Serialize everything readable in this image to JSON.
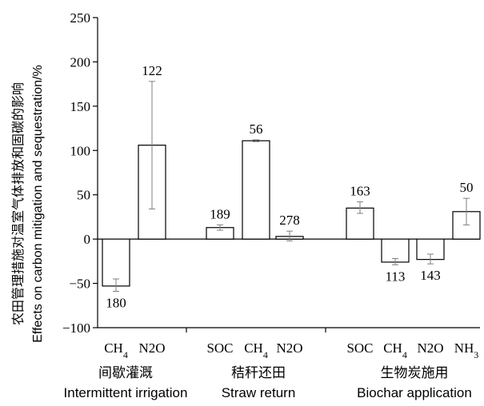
{
  "chart_data": {
    "type": "bar",
    "ylabel_cn": "农田管理措施对温室气体排放和固碳的影响",
    "ylabel_en": "Effects on carbon mitigation and sequestration/%",
    "ylim": [
      -100,
      250
    ],
    "yticks": [
      "250",
      "200",
      "150",
      "100",
      "50",
      "0",
      "−50",
      "−100"
    ],
    "ytick_values": [
      250,
      200,
      150,
      100,
      50,
      0,
      -50,
      -100
    ],
    "grid": false,
    "groups": [
      {
        "name_cn": "间歇灌溉",
        "name_en": "Intermittent irrigation",
        "bars": [
          {
            "category": "CH4",
            "value": -53,
            "err_low": -59,
            "err_high": -45,
            "n": "180"
          },
          {
            "category": "N2O",
            "value": 106,
            "err_low": 34,
            "err_high": 178,
            "n": "122"
          }
        ]
      },
      {
        "name_cn": "秸秆还田",
        "name_en": "Straw return",
        "bars": [
          {
            "category": "SOC",
            "value": 13,
            "err_low": 10,
            "err_high": 16,
            "n": "189"
          },
          {
            "category": "CH4",
            "value": 111,
            "err_low": 110,
            "err_high": 112,
            "n": "56"
          },
          {
            "category": "N2O",
            "value": 3,
            "err_low": -2,
            "err_high": 9,
            "n": "278"
          }
        ]
      },
      {
        "name_cn": "生物炭施用",
        "name_en": "Biochar application",
        "bars": [
          {
            "category": "SOC",
            "value": 35,
            "err_low": 29,
            "err_high": 42,
            "n": "163"
          },
          {
            "category": "CH4",
            "value": -26,
            "err_low": -29,
            "err_high": -22,
            "n": "113"
          },
          {
            "category": "N2O",
            "value": -23,
            "err_low": -28,
            "err_high": -17,
            "n": "143"
          },
          {
            "category": "NH3",
            "value": 31,
            "err_low": 16,
            "err_high": 46,
            "n": "50"
          }
        ]
      }
    ]
  }
}
